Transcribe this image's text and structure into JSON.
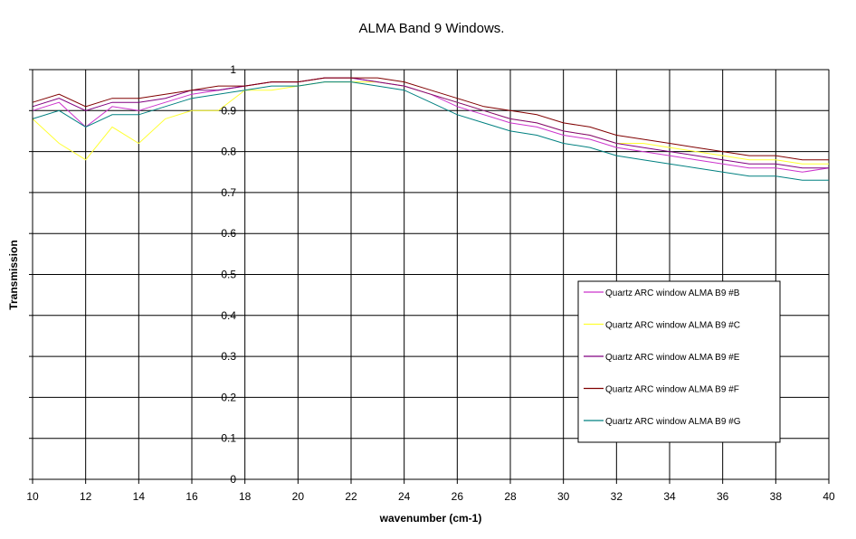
{
  "chart_data": {
    "type": "line",
    "title": "ALMA Band 9 Windows.",
    "xlabel": "wavenumber (cm-1)",
    "ylabel": "Transmission",
    "xlim": [
      10,
      40
    ],
    "ylim": [
      0,
      1
    ],
    "x_ticks": [
      "10",
      "12",
      "14",
      "16",
      "18",
      "20",
      "22",
      "24",
      "26",
      "28",
      "30",
      "32",
      "34",
      "36",
      "38",
      "40"
    ],
    "y_ticks": [
      "0",
      "0.1",
      "0.2",
      "0.3",
      "0.4",
      "0.5",
      "0.6",
      "0.7",
      "0.8",
      "0.9",
      "1"
    ],
    "grid": true,
    "legend_position": "right",
    "series": [
      {
        "name": "Quartz ARC window ALMA B9 #B",
        "color": "#cc33cc",
        "x": [
          10,
          11,
          12,
          13,
          14,
          15,
          16,
          17,
          18,
          19,
          20,
          21,
          22,
          23,
          24,
          25,
          26,
          27,
          28,
          29,
          30,
          31,
          32,
          33,
          34,
          35,
          36,
          37,
          38,
          39,
          40
        ],
        "y": [
          0.9,
          0.92,
          0.86,
          0.91,
          0.9,
          0.92,
          0.94,
          0.95,
          0.96,
          0.97,
          0.97,
          0.98,
          0.98,
          0.97,
          0.96,
          0.94,
          0.91,
          0.89,
          0.87,
          0.86,
          0.84,
          0.83,
          0.81,
          0.8,
          0.79,
          0.78,
          0.77,
          0.76,
          0.76,
          0.75,
          0.76
        ]
      },
      {
        "name": "Quartz ARC window ALMA B9 #C",
        "color": "#ffff33",
        "x": [
          10,
          11,
          12,
          13,
          14,
          15,
          16,
          17,
          18,
          19,
          20,
          21,
          22,
          23,
          24,
          25,
          26,
          27,
          28,
          29,
          30,
          31,
          32,
          33,
          34,
          35,
          36,
          37,
          38,
          39,
          40
        ],
        "y": [
          0.88,
          0.82,
          0.78,
          0.86,
          0.82,
          0.88,
          0.9,
          0.9,
          0.95,
          0.95,
          0.96,
          0.97,
          0.97,
          0.97,
          0.96,
          0.94,
          0.92,
          0.9,
          0.88,
          0.87,
          0.85,
          0.84,
          0.82,
          0.82,
          0.81,
          0.8,
          0.79,
          0.78,
          0.78,
          0.77,
          0.77
        ]
      },
      {
        "name": "Quartz ARC window ALMA B9 #E",
        "color": "#800080",
        "x": [
          10,
          11,
          12,
          13,
          14,
          15,
          16,
          17,
          18,
          19,
          20,
          21,
          22,
          23,
          24,
          25,
          26,
          27,
          28,
          29,
          30,
          31,
          32,
          33,
          34,
          35,
          36,
          37,
          38,
          39,
          40
        ],
        "y": [
          0.91,
          0.93,
          0.9,
          0.92,
          0.92,
          0.93,
          0.95,
          0.95,
          0.96,
          0.97,
          0.97,
          0.98,
          0.98,
          0.97,
          0.96,
          0.94,
          0.92,
          0.9,
          0.88,
          0.87,
          0.85,
          0.84,
          0.82,
          0.81,
          0.8,
          0.79,
          0.78,
          0.77,
          0.77,
          0.76,
          0.76
        ]
      },
      {
        "name": "Quartz ARC window ALMA B9 #F",
        "color": "#800000",
        "x": [
          10,
          11,
          12,
          13,
          14,
          15,
          16,
          17,
          18,
          19,
          20,
          21,
          22,
          23,
          24,
          25,
          26,
          27,
          28,
          29,
          30,
          31,
          32,
          33,
          34,
          35,
          36,
          37,
          38,
          39,
          40
        ],
        "y": [
          0.92,
          0.94,
          0.91,
          0.93,
          0.93,
          0.94,
          0.95,
          0.96,
          0.96,
          0.97,
          0.97,
          0.98,
          0.98,
          0.98,
          0.97,
          0.95,
          0.93,
          0.91,
          0.9,
          0.89,
          0.87,
          0.86,
          0.84,
          0.83,
          0.82,
          0.81,
          0.8,
          0.79,
          0.79,
          0.78,
          0.78
        ]
      },
      {
        "name": "Quartz ARC window ALMA B9 #G",
        "color": "#008080",
        "x": [
          10,
          11,
          12,
          13,
          14,
          15,
          16,
          17,
          18,
          19,
          20,
          21,
          22,
          23,
          24,
          25,
          26,
          27,
          28,
          29,
          30,
          31,
          32,
          33,
          34,
          35,
          36,
          37,
          38,
          39,
          40
        ],
        "y": [
          0.88,
          0.9,
          0.86,
          0.89,
          0.89,
          0.91,
          0.93,
          0.94,
          0.95,
          0.96,
          0.96,
          0.97,
          0.97,
          0.96,
          0.95,
          0.92,
          0.89,
          0.87,
          0.85,
          0.84,
          0.82,
          0.81,
          0.79,
          0.78,
          0.77,
          0.76,
          0.75,
          0.74,
          0.74,
          0.73,
          0.73
        ]
      }
    ]
  }
}
